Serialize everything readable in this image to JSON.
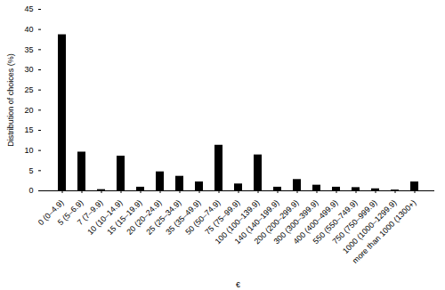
{
  "chart_data": {
    "type": "bar",
    "xlabel": "€",
    "ylabel": "Distribution of choices (%)",
    "categories": [
      "0 (0–4.9)",
      "5 (5–6.9)",
      "7 (7–9.9)",
      "10 (10–14.9)",
      "15 (15–19.9)",
      "20 (20–24.9)",
      "25 (25–34.9)",
      "35 (35–49.9)",
      "50 (50–74.9)",
      "75 (75–99.9)",
      "100 (100–139.9)",
      "140 (140–199.9)",
      "200 (200–299.9)",
      "300 (300–399.9)",
      "400 (400–499.9)",
      "550 (550–749.9)",
      "750 (750–999.9)",
      "1000 (1000–1299.9)",
      "more than 1000 (1300+)"
    ],
    "values": [
      38.7,
      9.6,
      0.3,
      8.6,
      0.9,
      4.7,
      3.6,
      2.2,
      11.3,
      1.7,
      8.9,
      0.9,
      2.8,
      1.4,
      0.9,
      0.8,
      0.5,
      0.2,
      2.2
    ],
    "color": "#000000",
    "ylim": [
      0,
      45
    ],
    "yticks": [
      0,
      5,
      10,
      15,
      20,
      25,
      30,
      35,
      40,
      45
    ],
    "grid": false
  }
}
